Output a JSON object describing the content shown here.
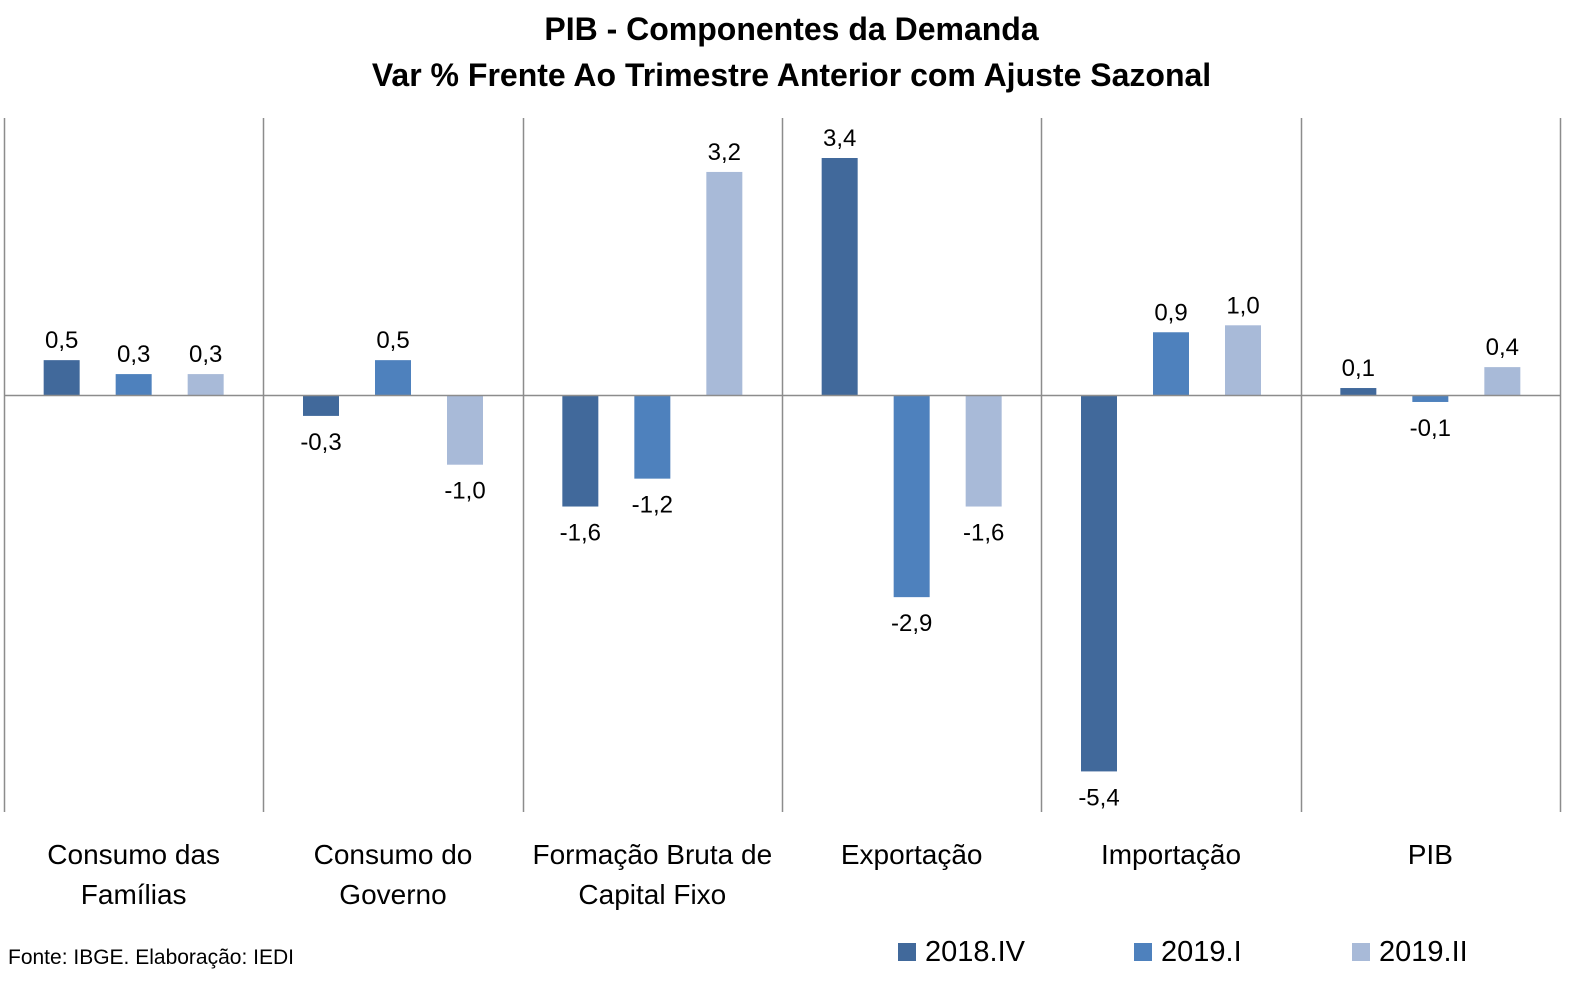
{
  "chart_data": {
    "type": "bar",
    "title": "PIB - Componentes da Demanda",
    "subtitle": "Var % Frente Ao Trimestre Anterior com Ajuste Sazonal",
    "categories": [
      [
        "Consumo das",
        "Famílias"
      ],
      [
        "Consumo do",
        "Governo"
      ],
      [
        "Formação Bruta de",
        "Capital Fixo"
      ],
      [
        "Exportação"
      ],
      [
        "Importação"
      ],
      [
        "PIB"
      ]
    ],
    "series": [
      {
        "name": "2018.IV",
        "color": "#41699B",
        "values": [
          0.5,
          -0.3,
          -1.6,
          3.4,
          -5.4,
          0.1
        ],
        "labels": [
          "0,5",
          "-0,3",
          "-1,6",
          "3,4",
          "-5,4",
          "0,1"
        ]
      },
      {
        "name": "2019.I",
        "color": "#4E81BD",
        "values": [
          0.3,
          0.5,
          -1.2,
          -2.9,
          0.9,
          -0.1
        ],
        "labels": [
          "0,3",
          "0,5",
          "-1,2",
          "-2,9",
          "0,9",
          "-0,1"
        ]
      },
      {
        "name": "2019.II",
        "color": "#A8BAD8",
        "values": [
          0.3,
          -1.0,
          3.2,
          -1.6,
          1.0,
          0.4
        ],
        "labels": [
          "0,3",
          "-1,0",
          "3,2",
          "-1,6",
          "1,0",
          "0,4"
        ]
      }
    ],
    "ylim": [
      -6.0,
      4.0
    ],
    "grid": false,
    "legend_position": "bottom-right"
  },
  "footer": {
    "source": "Fonte: IBGE. Elaboração: IEDI"
  }
}
